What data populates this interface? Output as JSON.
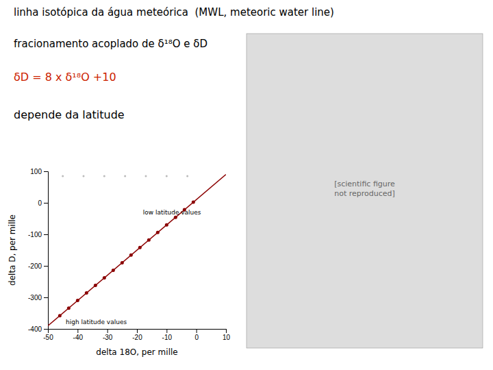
{
  "chart_data": [
    {
      "type": "scatter",
      "title": "linha isotópica da água meteórica  (MWL, meteoric water line)",
      "subtitle": "fracionamento acoplado de δ¹⁸O e δD",
      "x_label": "delta 18O, per mille",
      "y_label": "delta D, per mille",
      "xlim": [
        -50,
        10
      ],
      "ylim": [
        -400,
        100
      ],
      "xticks": [
        -50,
        -40,
        -30,
        -20,
        -10,
        0,
        10
      ],
      "yticks": [
        -400,
        -300,
        -200,
        -100,
        0,
        100
      ],
      "grid": false,
      "series": [
        {
          "type": "line",
          "color": "#8B0000",
          "x": [
            -50,
            10
          ],
          "values": [
            -390,
            90
          ]
        },
        {
          "type": "scatter",
          "color": "#8B0000",
          "x": [
            -46,
            -43,
            -40,
            -37,
            -34,
            -31,
            -28,
            -25,
            -22,
            -19,
            -16,
            -13,
            -10,
            -7,
            -4,
            -1
          ],
          "values": [
            -358,
            -334,
            -310,
            -286,
            -262,
            -238,
            -214,
            -190,
            -166,
            -142,
            -118,
            -94,
            -70,
            -46,
            -22,
            2
          ]
        },
        {
          "type": "scatter",
          "color": "#bbbbbb",
          "x": [
            -45,
            -38,
            -31,
            -24,
            -17,
            -10,
            -3
          ],
          "values": [
            85,
            85,
            85,
            85,
            85,
            85,
            85
          ]
        }
      ],
      "annotations": [
        {
          "text": "δD = 8 x δ¹⁸O +10",
          "color": "#cc2200"
        },
        {
          "text": "depende da latitude"
        },
        {
          "text": "low latitude values",
          "x": -18,
          "y": -38
        },
        {
          "text": "high latitude values",
          "x": -44,
          "y": -370
        }
      ]
    },
    {
      "type": "placeholder",
      "color": "#dddddd",
      "text": "[scientific figure\nnot reproduced]"
    }
  ]
}
